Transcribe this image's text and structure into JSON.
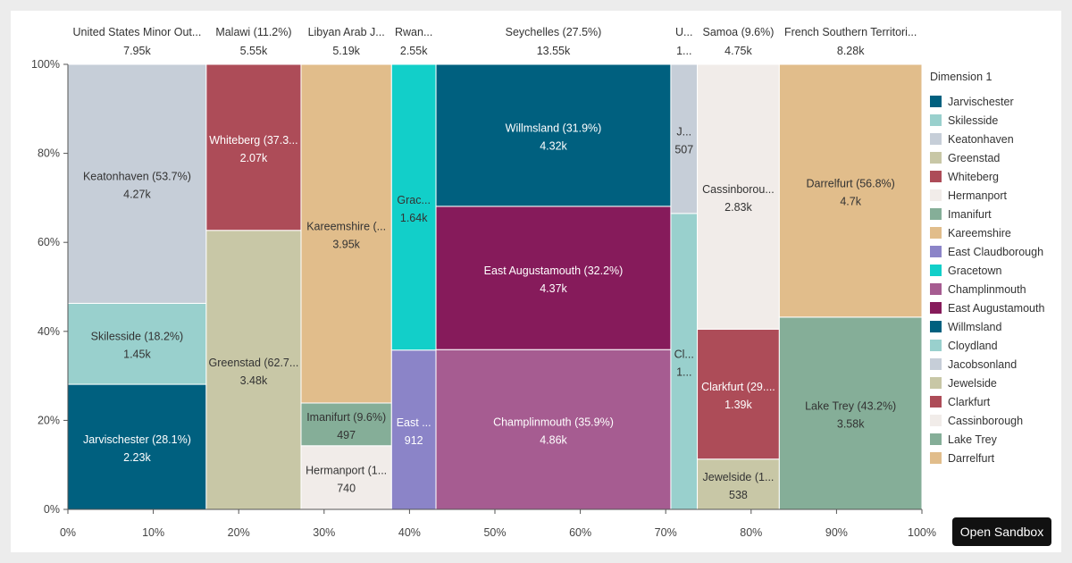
{
  "chart_data": {
    "type": "marimekko",
    "x_ticks": [
      "0%",
      "10%",
      "20%",
      "30%",
      "40%",
      "50%",
      "60%",
      "70%",
      "80%",
      "90%",
      "100%"
    ],
    "y_ticks": [
      "0%",
      "20%",
      "40%",
      "60%",
      "80%",
      "100%"
    ],
    "legend": {
      "title": "Dimension 1",
      "position": "right",
      "items": [
        {
          "label": "Jarvischester",
          "color": "#00607f"
        },
        {
          "label": "Skilesside",
          "color": "#99d0cd"
        },
        {
          "label": "Keatonhaven",
          "color": "#c6ced8"
        },
        {
          "label": "Greenstad",
          "color": "#c8c7a6"
        },
        {
          "label": "Whiteberg",
          "color": "#ad4c58"
        },
        {
          "label": "Hermanport",
          "color": "#f1ece9"
        },
        {
          "label": "Imanifurt",
          "color": "#85ae98"
        },
        {
          "label": "Kareemshire",
          "color": "#e1bd8b"
        },
        {
          "label": "East Claudborough",
          "color": "#8b84c8"
        },
        {
          "label": "Gracetown",
          "color": "#12cfc9"
        },
        {
          "label": "Champlinmouth",
          "color": "#a65c91"
        },
        {
          "label": "East Augustamouth",
          "color": "#861b5b"
        },
        {
          "label": "Willmsland",
          "color": "#00607f"
        },
        {
          "label": "Cloydland",
          "color": "#99d0cd"
        },
        {
          "label": "Jacobsonland",
          "color": "#c6ced8"
        },
        {
          "label": "Jewelside",
          "color": "#c8c7a6"
        },
        {
          "label": "Clarkfurt",
          "color": "#ad4c58"
        },
        {
          "label": "Cassinborough",
          "color": "#f1ece9"
        },
        {
          "label": "Lake Trey",
          "color": "#85ae98"
        },
        {
          "label": "Darrelfurt",
          "color": "#e1bd8b"
        }
      ]
    },
    "columns": [
      {
        "label": "United States Minor Out...",
        "total": "7.95k",
        "x0": 0,
        "x1": 16.2,
        "segments": [
          {
            "name": "Jarvischester",
            "label": "Jarvischester (28.1%)",
            "value": "2.23k",
            "y0": 0,
            "y1": 28.1,
            "color": "#00607f",
            "text_color": "#ffffff"
          },
          {
            "name": "Skilesside",
            "label": "Skilesside (18.2%)",
            "value": "1.45k",
            "y0": 28.1,
            "y1": 46.3,
            "color": "#99d0cd",
            "text_color": "#333333"
          },
          {
            "name": "Keatonhaven",
            "label": "Keatonhaven (53.7%)",
            "value": "4.27k",
            "y0": 46.3,
            "y1": 100,
            "color": "#c6ced8",
            "text_color": "#333333"
          }
        ]
      },
      {
        "label": "Malawi (11.2%)",
        "total": "5.55k",
        "x0": 16.2,
        "x1": 27.3,
        "segments": [
          {
            "name": "Greenstad",
            "label": "Greenstad (62.7...",
            "value": "3.48k",
            "y0": 0,
            "y1": 62.7,
            "color": "#c8c7a6",
            "text_color": "#333333"
          },
          {
            "name": "Whiteberg",
            "label": "Whiteberg (37.3...",
            "value": "2.07k",
            "y0": 62.7,
            "y1": 100,
            "color": "#ad4c58",
            "text_color": "#ffffff"
          }
        ]
      },
      {
        "label": "Libyan Arab J...",
        "total": "5.19k",
        "x0": 27.3,
        "x1": 37.9,
        "segments": [
          {
            "name": "Hermanport",
            "label": "Hermanport (1...",
            "value": "740",
            "y0": 0,
            "y1": 14.3,
            "color": "#f1ece9",
            "text_color": "#333333"
          },
          {
            "name": "Imanifurt",
            "label": "Imanifurt (9.6%)",
            "value": "497",
            "y0": 14.3,
            "y1": 23.9,
            "color": "#85ae98",
            "text_color": "#333333"
          },
          {
            "name": "Kareemshire",
            "label": "Kareemshire (...",
            "value": "3.95k",
            "y0": 23.9,
            "y1": 100,
            "color": "#e1bd8b",
            "text_color": "#333333"
          }
        ]
      },
      {
        "label": "Rwan...",
        "total": "2.55k",
        "x0": 37.9,
        "x1": 43.1,
        "segments": [
          {
            "name": "East Claudborough",
            "label": "East ...",
            "value": "912",
            "y0": 0,
            "y1": 35.8,
            "color": "#8b84c8",
            "text_color": "#ffffff"
          },
          {
            "name": "Gracetown",
            "label": "Grac...",
            "value": "1.64k",
            "y0": 35.8,
            "y1": 100,
            "color": "#12cfc9",
            "text_color": "#333333"
          }
        ]
      },
      {
        "label": "Seychelles (27.5%)",
        "total": "13.55k",
        "x0": 43.1,
        "x1": 70.6,
        "segments": [
          {
            "name": "Champlinmouth",
            "label": "Champlinmouth (35.9%)",
            "value": "4.86k",
            "y0": 0,
            "y1": 35.9,
            "color": "#a65c91",
            "text_color": "#ffffff"
          },
          {
            "name": "East Augustamouth",
            "label": "East Augustamouth (32.2%)",
            "value": "4.37k",
            "y0": 35.9,
            "y1": 68.1,
            "color": "#861b5b",
            "text_color": "#ffffff"
          },
          {
            "name": "Willmsland",
            "label": "Willmsland (31.9%)",
            "value": "4.32k",
            "y0": 68.1,
            "y1": 100,
            "color": "#00607f",
            "text_color": "#ffffff"
          }
        ]
      },
      {
        "label": "U...",
        "total": "1...",
        "x0": 70.6,
        "x1": 73.7,
        "segments": [
          {
            "name": "Cloydland",
            "label": "Cl...",
            "value": "1...",
            "y0": 0,
            "y1": 66.5,
            "color": "#99d0cd",
            "text_color": "#333333"
          },
          {
            "name": "Jacobsonland",
            "label": "J...",
            "value": "507",
            "y0": 66.5,
            "y1": 100,
            "color": "#c6ced8",
            "text_color": "#333333"
          }
        ]
      },
      {
        "label": "Samoa (9.6%)",
        "total": "4.75k",
        "x0": 73.7,
        "x1": 83.3,
        "segments": [
          {
            "name": "Jewelside",
            "label": "Jewelside (1...",
            "value": "538",
            "y0": 0,
            "y1": 11.3,
            "color": "#c8c7a6",
            "text_color": "#333333"
          },
          {
            "name": "Clarkfurt",
            "label": "Clarkfurt (29....",
            "value": "1.39k",
            "y0": 11.3,
            "y1": 40.5,
            "color": "#ad4c58",
            "text_color": "#ffffff"
          },
          {
            "name": "Cassinborough",
            "label": "Cassinborou...",
            "value": "2.83k",
            "y0": 40.5,
            "y1": 100,
            "color": "#f1ece9",
            "text_color": "#333333"
          }
        ]
      },
      {
        "label": "French Southern Territori...",
        "total": "8.28k",
        "x0": 83.3,
        "x1": 100,
        "segments": [
          {
            "name": "Lake Trey",
            "label": "Lake Trey (43.2%)",
            "value": "3.58k",
            "y0": 0,
            "y1": 43.2,
            "color": "#85ae98",
            "text_color": "#333333"
          },
          {
            "name": "Darrelfurt",
            "label": "Darrelfurt (56.8%)",
            "value": "4.7k",
            "y0": 43.2,
            "y1": 100,
            "color": "#e1bd8b",
            "text_color": "#333333"
          }
        ]
      }
    ]
  },
  "sandbox_button": {
    "label": "Open Sandbox"
  }
}
